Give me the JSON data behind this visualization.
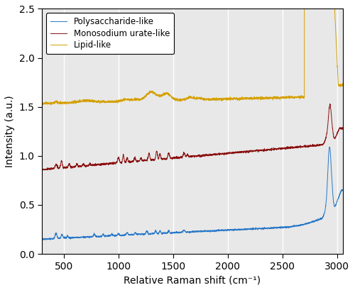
{
  "title": "",
  "xlabel": "Relative Raman shift (cm⁻¹)",
  "ylabel": "Intensity (a.u.)",
  "xlim": [
    300,
    3050
  ],
  "ylim": [
    0,
    2.5
  ],
  "yticks": [
    0,
    0.5,
    1.0,
    1.5,
    2.0,
    2.5
  ],
  "xticks": [
    500,
    1000,
    1500,
    2000,
    2500,
    3000
  ],
  "colors": {
    "polysaccharide": "#2878c8",
    "monosodium": "#8b1010",
    "lipid": "#d4a000"
  },
  "legend": {
    "polysaccharide": "Polysaccharide-like",
    "monosodium": "Monosodium urate-like",
    "lipid": "Lipid-like"
  },
  "background_color": "#e8e8e8",
  "grid_color": "#ffffff",
  "line_width": 0.7
}
